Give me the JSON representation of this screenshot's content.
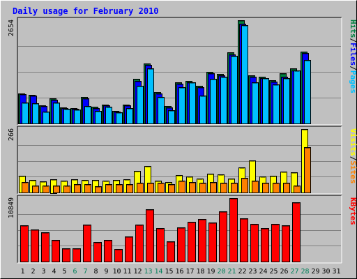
{
  "chart_data": {
    "type": "bar",
    "title": "Daily usage for February 2010",
    "categories": [
      "1",
      "2",
      "3",
      "4",
      "5",
      "6",
      "7",
      "8",
      "9",
      "10",
      "11",
      "12",
      "13",
      "14",
      "15",
      "16",
      "17",
      "18",
      "19",
      "20",
      "21",
      "22",
      "23",
      "24",
      "25",
      "26",
      "27",
      "28",
      "29",
      "30",
      "31"
    ],
    "weekend_days": [
      6,
      7,
      13,
      14,
      20,
      21,
      27,
      28
    ],
    "panels": [
      {
        "id": "pages-files-hits",
        "max_label": "2654",
        "ylim": [
          0,
          2654
        ],
        "axis_labels": [
          {
            "text": "Hits",
            "color": "#008040"
          },
          {
            "text": "Files",
            "color": "#0000ff"
          },
          {
            "text": "Pages",
            "color": "#00c0ff"
          }
        ],
        "series": [
          {
            "name": "Hits",
            "color": "#008040",
            "values": [
              780,
              740,
              470,
              640,
              420,
              400,
              680,
              430,
              490,
              330,
              490,
              1140,
              1550,
              800,
              440,
              1060,
              1100,
              970,
              1330,
              1270,
              1830,
              2654,
              1240,
              1210,
              1120,
              1290,
              1410,
              1850,
              0,
              0,
              0
            ]
          },
          {
            "name": "Files",
            "color": "#0000ff",
            "values": [
              760,
              710,
              440,
              610,
              400,
              380,
              650,
              400,
              460,
              310,
              460,
              1100,
              1500,
              770,
              410,
              1030,
              1060,
              940,
              1290,
              1230,
              1780,
              2560,
              1200,
              1170,
              1080,
              1210,
              1370,
              1810,
              0,
              0,
              0
            ]
          },
          {
            "name": "Pages",
            "color": "#00c0ff",
            "values": [
              540,
              520,
              300,
              540,
              380,
              360,
              450,
              330,
              430,
              290,
              400,
              970,
              1420,
              680,
              340,
              940,
              1050,
              720,
              1140,
              1200,
              1740,
              2520,
              1060,
              1160,
              1010,
              1160,
              1370,
              1640,
              0,
              0,
              0
            ]
          }
        ]
      },
      {
        "id": "visits-sites",
        "max_label": "266",
        "ylim": [
          0,
          266
        ],
        "axis_labels": [
          {
            "text": "Visits",
            "color": "#ffff00"
          },
          {
            "text": "Sites",
            "color": "#ff8000"
          }
        ],
        "series": [
          {
            "name": "Visits",
            "color": "#ffff00",
            "values": [
              70,
              52,
              46,
              57,
              50,
              55,
              54,
              52,
              50,
              53,
              55,
              90,
              110,
              50,
              44,
              72,
              66,
              58,
              80,
              76,
              58,
              104,
              135,
              68,
              70,
              88,
              84,
              266,
              0,
              0,
              0
            ]
          },
          {
            "name": "Sites",
            "color": "#ff8000",
            "values": [
              45,
              30,
              30,
              30,
              30,
              35,
              35,
              25,
              35,
              35,
              35,
              40,
              40,
              40,
              35,
              50,
              45,
              40,
              45,
              40,
              40,
              60,
              50,
              40,
              40,
              40,
              30,
              190,
              0,
              0,
              0
            ]
          }
        ]
      },
      {
        "id": "kbytes",
        "max_label": "10849",
        "ylim": [
          0,
          10849
        ],
        "axis_labels": [
          {
            "text": "KBytes",
            "color": "#ff0000"
          }
        ],
        "series": [
          {
            "name": "KBytes",
            "color": "#ff0000",
            "values": [
              6250,
              5500,
              5000,
              3750,
              2250,
              2250,
              6350,
              3350,
              3650,
              2100,
              4250,
              6350,
              8950,
              5750,
              3400,
              5850,
              6850,
              7250,
              6650,
              8600,
              10849,
              7450,
              6400,
              5750,
              6450,
              6200,
              10100,
              0,
              0,
              0,
              0
            ]
          }
        ]
      }
    ]
  }
}
